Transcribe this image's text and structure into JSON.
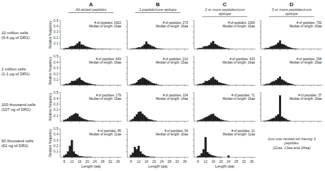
{
  "chart_data": [
    {
      "type": "bar",
      "title": "A",
      "subtitle": "All eluted peptides",
      "x": [
        8,
        9,
        10,
        11,
        12,
        13,
        14,
        15,
        16,
        17,
        18,
        19,
        20,
        21,
        22,
        23,
        24,
        25,
        26,
        27,
        28,
        29,
        30,
        31,
        32
      ],
      "values": [
        0.01,
        0.02,
        0.02,
        0.04,
        0.05,
        0.05,
        0.07,
        0.1,
        0.13,
        0.08,
        0.07,
        0.05,
        0.04,
        0.03,
        0.02,
        0.01,
        0.01,
        0.005,
        0.005,
        0.003,
        0.002,
        0.002,
        0.001,
        0.001,
        0.001
      ],
      "color": "#1a1a1a",
      "xlim": [
        6,
        38
      ],
      "xticks": [
        8,
        12,
        16,
        20,
        24,
        28,
        32,
        36
      ],
      "ylim": [
        0,
        0.5
      ],
      "yticks": [
        0.1,
        0.2,
        0.3,
        0.4,
        0.5
      ],
      "ylabel": "Relative frequency",
      "tick_labels": "y",
      "annotations": [
        "# of peptides: 1422\nMedian of length: 16aa",
        "10 million cells\n(9.4 µg of DR1)"
      ]
    },
    {
      "type": "bar",
      "title": "B",
      "subtitle": "1 peptide/core epitope",
      "x": [
        8,
        9,
        10,
        11,
        12,
        13,
        14,
        15,
        16,
        17,
        18,
        19,
        20,
        21,
        22,
        23,
        24,
        25
      ],
      "values": [
        0.005,
        0.01,
        0.01,
        0.02,
        0.03,
        0.03,
        0.05,
        0.08,
        0.13,
        0.09,
        0.07,
        0.05,
        0.04,
        0.02,
        0.01,
        0.01,
        0.005,
        0.003
      ],
      "color": "#1a1a1a",
      "xlim": [
        6,
        38
      ],
      "xticks": [
        8,
        12,
        16,
        20,
        24,
        28,
        32,
        36
      ],
      "ylim": [
        0,
        0.5
      ],
      "yticks": [
        0.1,
        0.2,
        0.3,
        0.4,
        0.5
      ],
      "tick_labels": false,
      "annotations": [
        "# of peptides: 273\nMedian of length: 16aa"
      ]
    },
    {
      "type": "bar",
      "title": "C",
      "subtitle": "2 or more peptides/core\nepitope",
      "x": [
        8,
        9,
        10,
        11,
        12,
        13,
        14,
        15,
        16,
        17,
        18,
        19,
        20,
        21,
        22,
        23,
        24,
        25,
        26
      ],
      "values": [
        0.01,
        0.02,
        0.02,
        0.04,
        0.05,
        0.05,
        0.07,
        0.11,
        0.14,
        0.09,
        0.07,
        0.05,
        0.04,
        0.03,
        0.02,
        0.01,
        0.01,
        0.005,
        0.003
      ],
      "color": "#1a1a1a",
      "xlim": [
        6,
        38
      ],
      "xticks": [
        8,
        12,
        16,
        20,
        24,
        28,
        32,
        36
      ],
      "ylim": [
        0,
        0.5
      ],
      "yticks": [
        0.1,
        0.2,
        0.3,
        0.4,
        0.5
      ],
      "tick_labels": false,
      "annotations": [
        "# of peptides: 1306\nMedian of length: 16aa"
      ]
    },
    {
      "type": "bar",
      "title": "D",
      "subtitle": "3 or more peptides/core\nepitope",
      "x": [
        8,
        9,
        10,
        11,
        12,
        13,
        14,
        15,
        16,
        17,
        18,
        19,
        20,
        21,
        22,
        23,
        24,
        25
      ],
      "values": [
        0.01,
        0.02,
        0.02,
        0.04,
        0.05,
        0.06,
        0.08,
        0.11,
        0.15,
        0.09,
        0.08,
        0.06,
        0.04,
        0.03,
        0.02,
        0.01,
        0.01,
        0.005
      ],
      "color": "#1a1a1a",
      "xlim": [
        6,
        38
      ],
      "xticks": [
        8,
        12,
        16,
        20,
        24,
        28,
        32,
        36
      ],
      "ylim": [
        0,
        0.5
      ],
      "yticks": [
        0.1,
        0.2,
        0.3,
        0.4,
        0.5
      ],
      "tick_labels": false,
      "annotations": [
        "# of peptides: 752\nMedian of length: 16aa"
      ]
    },
    {
      "type": "bar",
      "x": [
        8,
        9,
        10,
        11,
        12,
        13,
        14,
        15,
        16,
        17,
        18,
        19,
        20,
        21,
        22,
        23,
        24,
        25,
        26,
        27,
        28
      ],
      "values": [
        0.01,
        0.02,
        0.02,
        0.04,
        0.07,
        0.07,
        0.08,
        0.11,
        0.13,
        0.09,
        0.07,
        0.05,
        0.04,
        0.03,
        0.02,
        0.01,
        0.01,
        0.005,
        0.003,
        0.002,
        0.001
      ],
      "color": "#1a1a1a",
      "xlim": [
        6,
        38
      ],
      "xticks": [
        8,
        12,
        16,
        20,
        24,
        28,
        32,
        36
      ],
      "ylim": [
        0,
        0.5
      ],
      "yticks": [
        0.1,
        0.2,
        0.3,
        0.4,
        0.5
      ],
      "ylabel": "Relative frequency",
      "tick_labels": "y",
      "annotations": [
        "# of peptides: 643\nMedian of length: 16aa",
        "1 million cells\n(1.1 µg of DR1)"
      ]
    },
    {
      "type": "bar",
      "x": [
        8,
        9,
        10,
        11,
        12,
        13,
        14,
        15,
        16,
        17,
        18,
        19,
        20,
        21,
        22,
        23,
        24
      ],
      "values": [
        0.01,
        0.02,
        0.03,
        0.05,
        0.09,
        0.11,
        0.13,
        0.12,
        0.1,
        0.08,
        0.06,
        0.04,
        0.03,
        0.02,
        0.01,
        0.005,
        0.003
      ],
      "color": "#1a1a1a",
      "xlim": [
        6,
        38
      ],
      "xticks": [
        8,
        12,
        16,
        20,
        24,
        28,
        32,
        36
      ],
      "ylim": [
        0,
        0.5
      ],
      "yticks": [
        0.1,
        0.2,
        0.3,
        0.4,
        0.5
      ],
      "tick_labels": false,
      "annotations": [
        "# of peptides: 210\nMedian of length: 15aa"
      ]
    },
    {
      "type": "bar",
      "x": [
        8,
        9,
        10,
        11,
        12,
        13,
        14,
        15,
        16,
        17,
        18,
        19,
        20,
        21,
        22,
        23,
        24,
        25
      ],
      "values": [
        0.01,
        0.02,
        0.02,
        0.04,
        0.07,
        0.07,
        0.09,
        0.12,
        0.14,
        0.1,
        0.08,
        0.05,
        0.04,
        0.03,
        0.02,
        0.01,
        0.005,
        0.003
      ],
      "color": "#1a1a1a",
      "xlim": [
        6,
        38
      ],
      "xticks": [
        8,
        12,
        16,
        20,
        24,
        28,
        32,
        36
      ],
      "ylim": [
        0,
        0.5
      ],
      "yticks": [
        0.1,
        0.2,
        0.3,
        0.4,
        0.5
      ],
      "tick_labels": false,
      "annotations": [
        "# of peptides: 433\nMedian of length: 16aa"
      ]
    },
    {
      "type": "bar",
      "x": [
        8,
        9,
        10,
        11,
        12,
        13,
        14,
        15,
        16,
        17,
        18,
        19,
        20,
        21,
        22,
        23,
        24
      ],
      "values": [
        0.01,
        0.02,
        0.02,
        0.04,
        0.06,
        0.07,
        0.09,
        0.12,
        0.15,
        0.1,
        0.08,
        0.06,
        0.04,
        0.03,
        0.02,
        0.01,
        0.005
      ],
      "color": "#1a1a1a",
      "xlim": [
        6,
        38
      ],
      "xticks": [
        8,
        12,
        16,
        20,
        24,
        28,
        32,
        36
      ],
      "ylim": [
        0,
        0.5
      ],
      "yticks": [
        0.1,
        0.2,
        0.3,
        0.4,
        0.5
      ],
      "tick_labels": false,
      "annotations": [
        "# of peptides: 298\nMedian of length: 16aa"
      ]
    },
    {
      "type": "bar",
      "x": [
        8,
        9,
        10,
        11,
        12,
        13,
        14,
        15,
        16,
        17,
        18,
        19,
        20,
        21,
        22,
        23,
        24
      ],
      "values": [
        0.02,
        0.03,
        0.05,
        0.08,
        0.1,
        0.12,
        0.14,
        0.13,
        0.08,
        0.06,
        0.04,
        0.03,
        0.02,
        0.01,
        0.01,
        0.005,
        0.003
      ],
      "color": "#1a1a1a",
      "xlim": [
        6,
        38
      ],
      "xticks": [
        8,
        12,
        16,
        20,
        24,
        28,
        32,
        36
      ],
      "ylim": [
        0,
        0.5
      ],
      "yticks": [
        0.1,
        0.2,
        0.3,
        0.4,
        0.5
      ],
      "ylabel": "Relative frequency",
      "tick_labels": "y",
      "annotations": [
        "# of peptides: 179\nMedian of length: 15aa",
        "100 thousand cells\n(107 ng of DR1)"
      ]
    },
    {
      "type": "bar",
      "x": [
        8,
        9,
        10,
        11,
        12,
        13,
        14,
        15,
        16,
        17,
        18,
        19,
        20,
        21
      ],
      "values": [
        0.02,
        0.04,
        0.08,
        0.12,
        0.16,
        0.17,
        0.13,
        0.1,
        0.07,
        0.04,
        0.03,
        0.02,
        0.01,
        0.005
      ],
      "color": "#1a1a1a",
      "xlim": [
        6,
        38
      ],
      "xticks": [
        8,
        12,
        16,
        20,
        24,
        28,
        32,
        36
      ],
      "ylim": [
        0,
        0.5
      ],
      "yticks": [
        0.1,
        0.2,
        0.3,
        0.4,
        0.5
      ],
      "tick_labels": false,
      "annotations": [
        "# of peptides: 104\nMedian of length: 14aa"
      ]
    },
    {
      "type": "bar",
      "x": [
        8,
        9,
        10,
        11,
        12,
        13,
        14,
        15,
        16,
        17,
        18,
        19,
        20,
        21,
        22,
        23
      ],
      "values": [
        0.01,
        0.02,
        0.03,
        0.05,
        0.07,
        0.08,
        0.1,
        0.12,
        0.13,
        0.09,
        0.07,
        0.05,
        0.03,
        0.02,
        0.01,
        0.005
      ],
      "color": "#1a1a1a",
      "xlim": [
        6,
        38
      ],
      "xticks": [
        8,
        12,
        16,
        20,
        24,
        28,
        32,
        36
      ],
      "ylim": [
        0,
        0.5
      ],
      "yticks": [
        0.1,
        0.2,
        0.3,
        0.4,
        0.5
      ],
      "tick_labels": false,
      "annotations": [
        "# of peptides: 71\nMedian of length: 16aa"
      ]
    },
    {
      "type": "bar",
      "x": [
        8,
        9,
        10,
        11,
        12,
        13,
        14,
        15,
        16,
        17,
        18,
        19,
        20,
        21
      ],
      "values": [
        0.005,
        0.01,
        0.02,
        0.03,
        0.05,
        0.06,
        0.09,
        0.12,
        0.45,
        0.08,
        0.06,
        0.04,
        0.02,
        0.01
      ],
      "color": "#1a1a1a",
      "xlim": [
        6,
        38
      ],
      "xticks": [
        8,
        12,
        16,
        20,
        24,
        28,
        32,
        36
      ],
      "ylim": [
        0,
        0.5
      ],
      "yticks": [
        0.1,
        0.2,
        0.3,
        0.4,
        0.5
      ],
      "tick_labels": false,
      "annotations": [
        "# of peptides: 37\nMedian of length: 16aa"
      ]
    },
    {
      "type": "bar",
      "x": [
        8,
        9,
        10,
        11,
        12,
        13,
        14,
        15,
        16,
        17,
        18,
        19,
        20,
        21,
        22
      ],
      "values": [
        0.03,
        0.05,
        0.1,
        0.2,
        0.3,
        0.1,
        0.06,
        0.04,
        0.02,
        0.02,
        0.01,
        0.01,
        0.005,
        0.003,
        0.002
      ],
      "color": "#1a1a1a",
      "xlim": [
        6,
        38
      ],
      "xticks": [
        8,
        12,
        16,
        20,
        24,
        28,
        32,
        36
      ],
      "ylim": [
        0,
        0.5
      ],
      "yticks": [
        0.1,
        0.2,
        0.3,
        0.4,
        0.5
      ],
      "xlabel": "Length (aa)",
      "ylabel": "Relative frequency",
      "annotations": [
        "# of peptides: 85\nMedian of length: 11aa",
        "50 thousand cells\n(62 ng of DR1)"
      ]
    },
    {
      "type": "bar",
      "x": [
        8,
        9,
        10,
        11,
        12,
        13,
        14,
        15,
        16,
        17,
        18,
        19,
        20
      ],
      "values": [
        0.04,
        0.08,
        0.18,
        0.14,
        0.2,
        0.1,
        0.06,
        0.04,
        0.02,
        0.02,
        0.01,
        0.005,
        0.003
      ],
      "color": "#1a1a1a",
      "xlim": [
        6,
        38
      ],
      "xticks": [
        8,
        12,
        16,
        20,
        24,
        28,
        32,
        36
      ],
      "ylim": [
        0,
        0.5
      ],
      "yticks": [
        0.1,
        0.2,
        0.3,
        0.4,
        0.5
      ],
      "xlabel": "Length (aa)",
      "tick_labels": "x",
      "annotations": [
        "# of peptides: 54\nMedian of length: 10aa"
      ]
    },
    {
      "type": "bar",
      "x": [
        8,
        9,
        10,
        11,
        12,
        13,
        14,
        15,
        16,
        17,
        18,
        19,
        20,
        24
      ],
      "values": [
        0.02,
        0.03,
        0.07,
        0.14,
        0.35,
        0.09,
        0.06,
        0.04,
        0.03,
        0.02,
        0.01,
        0.005,
        0.003,
        0.03
      ],
      "color": "#1a1a1a",
      "xlim": [
        6,
        38
      ],
      "xticks": [
        8,
        12,
        16,
        20,
        24,
        28,
        32,
        36
      ],
      "ylim": [
        0,
        0.5
      ],
      "yticks": [
        0.1,
        0.2,
        0.3,
        0.4,
        0.5
      ],
      "xlabel": "Length (aa)",
      "tick_labels": "x",
      "annotations": [
        "# of peptides: 21\nMedian of length: 11aa"
      ]
    },
    {
      "type": "empty",
      "annotations": [
        "Just one nested set having 3\npeptides\n(11aa, 13aa and 24aa)"
      ]
    }
  ]
}
